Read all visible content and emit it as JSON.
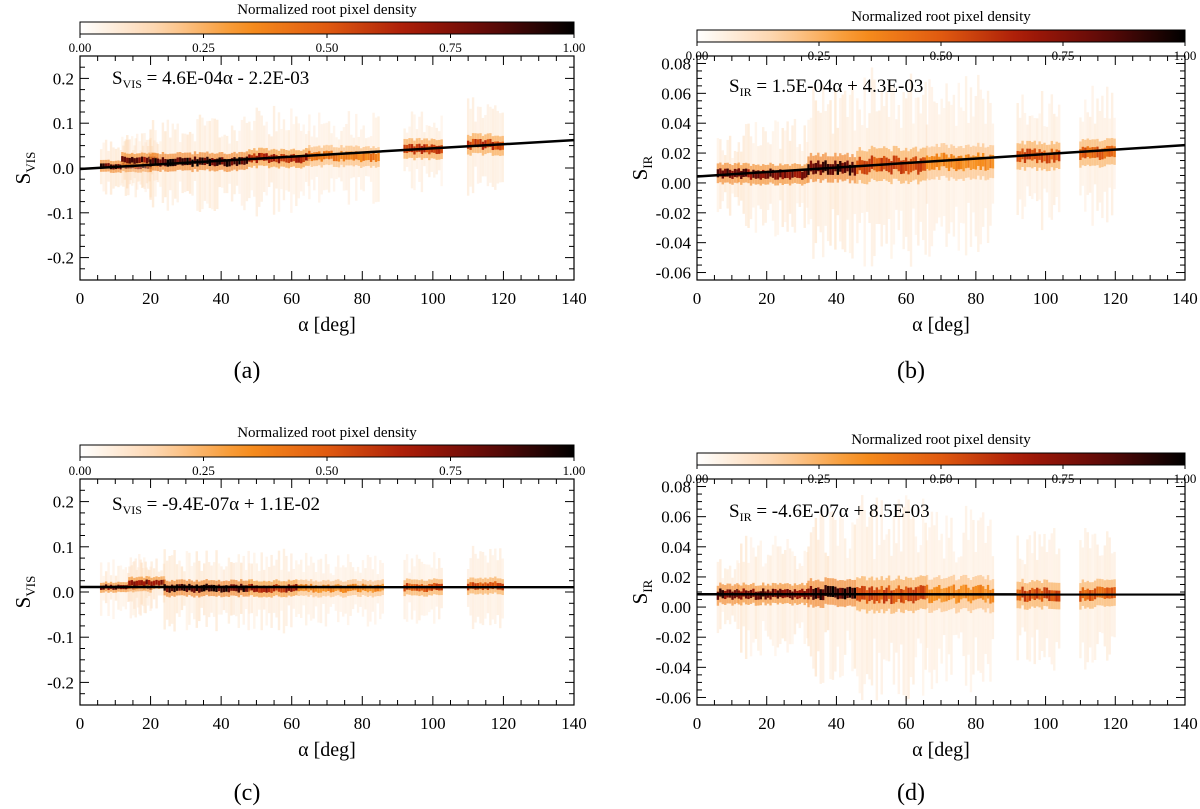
{
  "colorbar": {
    "title": "Normalized root pixel density",
    "ticks": [
      "0.00",
      "0.25",
      "0.50",
      "0.75",
      "1.00"
    ],
    "stops": [
      "#ffffff",
      "#fdd2a8",
      "#f7901e",
      "#e05a10",
      "#a81a08",
      "#5e0a08",
      "#000000"
    ]
  },
  "chart_data": [
    {
      "type": "heatmap",
      "panel": "a",
      "caption": "(a)",
      "equation": {
        "symbol": "S",
        "sub": "VIS",
        "rest": " = 4.6E-04α - 2.2E-03"
      },
      "xlabel": "α [deg]",
      "ylabel": {
        "symbol": "S",
        "sub": "VIS"
      },
      "xlim": [
        0,
        140
      ],
      "ylim": [
        -0.25,
        0.25
      ],
      "xticks": [
        0,
        20,
        40,
        60,
        80,
        100,
        120,
        140
      ],
      "yticks": [
        -0.2,
        -0.1,
        0.0,
        0.1,
        0.2
      ],
      "ytick_labels": [
        "-0.2",
        "-0.1",
        "0.0",
        "0.1",
        "0.2"
      ],
      "fit": {
        "slope": 0.00046,
        "intercept": -0.0022
      },
      "clusters": [
        {
          "x": [
            6,
            20
          ],
          "y": 0.004,
          "spread": 0.006,
          "intensity": 0.95,
          "halo": 0.05
        },
        {
          "x": [
            12,
            22
          ],
          "y": 0.018,
          "spread": 0.007,
          "intensity": 0.9,
          "halo": 0.05
        },
        {
          "x": [
            20,
            48
          ],
          "y": 0.014,
          "spread": 0.009,
          "intensity": 1.0,
          "halo": 0.08
        },
        {
          "x": [
            48,
            65
          ],
          "y": 0.022,
          "spread": 0.009,
          "intensity": 0.75,
          "halo": 0.09
        },
        {
          "x": [
            65,
            85
          ],
          "y": 0.026,
          "spread": 0.01,
          "intensity": 0.45,
          "halo": 0.08
        },
        {
          "x": [
            92,
            103
          ],
          "y": 0.042,
          "spread": 0.01,
          "intensity": 0.65,
          "halo": 0.07
        },
        {
          "x": [
            110,
            120
          ],
          "y": 0.052,
          "spread": 0.01,
          "intensity": 0.65,
          "halo": 0.08
        }
      ]
    },
    {
      "type": "heatmap",
      "panel": "b",
      "caption": "(b)",
      "equation": {
        "symbol": "S",
        "sub": "IR",
        "rest": " = 1.5E-04α + 4.3E-03"
      },
      "xlabel": "α [deg]",
      "ylabel": {
        "symbol": "S",
        "sub": "IR"
      },
      "xlim": [
        0,
        140
      ],
      "ylim": [
        -0.065,
        0.085
      ],
      "xticks": [
        0,
        20,
        40,
        60,
        80,
        100,
        120,
        140
      ],
      "yticks": [
        -0.06,
        -0.04,
        -0.02,
        0.0,
        0.02,
        0.04,
        0.06,
        0.08
      ],
      "ytick_labels": [
        "-0.06",
        "-0.04",
        "-0.02",
        "0.00",
        "0.02",
        "0.04",
        "0.06",
        "0.08"
      ],
      "fit": {
        "slope": 0.00015,
        "intercept": 0.0043
      },
      "clusters": [
        {
          "x": [
            6,
            12
          ],
          "y": 0.006,
          "spread": 0.003,
          "intensity": 0.95,
          "halo": 0.02
        },
        {
          "x": [
            12,
            32
          ],
          "y": 0.006,
          "spread": 0.003,
          "intensity": 0.9,
          "halo": 0.03
        },
        {
          "x": [
            32,
            46
          ],
          "y": 0.01,
          "spread": 0.004,
          "intensity": 1.0,
          "halo": 0.045
        },
        {
          "x": [
            46,
            66
          ],
          "y": 0.012,
          "spread": 0.005,
          "intensity": 0.6,
          "halo": 0.05
        },
        {
          "x": [
            66,
            85
          ],
          "y": 0.014,
          "spread": 0.005,
          "intensity": 0.4,
          "halo": 0.045
        },
        {
          "x": [
            92,
            104
          ],
          "y": 0.018,
          "spread": 0.004,
          "intensity": 0.6,
          "halo": 0.035
        },
        {
          "x": [
            110,
            120
          ],
          "y": 0.02,
          "spread": 0.004,
          "intensity": 0.55,
          "halo": 0.035
        }
      ]
    },
    {
      "type": "heatmap",
      "panel": "c",
      "caption": "(c)",
      "equation": {
        "symbol": "S",
        "sub": "VIS",
        "rest": " = -9.4E-07α + 1.1E-02"
      },
      "xlabel": "α [deg]",
      "ylabel": {
        "symbol": "S",
        "sub": "VIS"
      },
      "xlim": [
        0,
        140
      ],
      "ylim": [
        -0.25,
        0.25
      ],
      "xticks": [
        0,
        20,
        40,
        60,
        80,
        100,
        120,
        140
      ],
      "yticks": [
        -0.2,
        -0.1,
        0.0,
        0.1,
        0.2
      ],
      "ytick_labels": [
        "-0.2",
        "-0.1",
        "0.0",
        "0.1",
        "0.2"
      ],
      "fit": {
        "slope": -9.4e-07,
        "intercept": 0.011
      },
      "clusters": [
        {
          "x": [
            6,
            20
          ],
          "y": 0.011,
          "spread": 0.005,
          "intensity": 0.9,
          "halo": 0.05
        },
        {
          "x": [
            14,
            24
          ],
          "y": 0.02,
          "spread": 0.006,
          "intensity": 0.85,
          "halo": 0.05
        },
        {
          "x": [
            24,
            48
          ],
          "y": 0.008,
          "spread": 0.008,
          "intensity": 1.0,
          "halo": 0.07
        },
        {
          "x": [
            48,
            62
          ],
          "y": 0.008,
          "spread": 0.008,
          "intensity": 0.75,
          "halo": 0.07
        },
        {
          "x": [
            62,
            86
          ],
          "y": 0.008,
          "spread": 0.008,
          "intensity": 0.4,
          "halo": 0.06
        },
        {
          "x": [
            92,
            103
          ],
          "y": 0.01,
          "spread": 0.008,
          "intensity": 0.6,
          "halo": 0.06
        },
        {
          "x": [
            110,
            120
          ],
          "y": 0.014,
          "spread": 0.008,
          "intensity": 0.6,
          "halo": 0.07
        }
      ]
    },
    {
      "type": "heatmap",
      "panel": "d",
      "caption": "(d)",
      "equation": {
        "symbol": "S",
        "sub": "IR",
        "rest": " = -4.6E-07α + 8.5E-03"
      },
      "xlabel": "α [deg]",
      "ylabel": {
        "symbol": "S",
        "sub": "IR"
      },
      "xlim": [
        0,
        140
      ],
      "ylim": [
        -0.065,
        0.085
      ],
      "xticks": [
        0,
        20,
        40,
        60,
        80,
        100,
        120,
        140
      ],
      "yticks": [
        -0.06,
        -0.04,
        -0.02,
        0.0,
        0.02,
        0.04,
        0.06,
        0.08
      ],
      "ytick_labels": [
        "-0.06",
        "-0.04",
        "-0.02",
        "0.00",
        "0.02",
        "0.04",
        "0.06",
        "0.08"
      ],
      "fit": {
        "slope": -4.6e-07,
        "intercept": 0.0085
      },
      "clusters": [
        {
          "x": [
            6,
            12
          ],
          "y": 0.0085,
          "spread": 0.003,
          "intensity": 0.95,
          "halo": 0.02
        },
        {
          "x": [
            12,
            32
          ],
          "y": 0.0085,
          "spread": 0.003,
          "intensity": 0.9,
          "halo": 0.03
        },
        {
          "x": [
            32,
            46
          ],
          "y": 0.0095,
          "spread": 0.004,
          "intensity": 1.0,
          "halo": 0.045
        },
        {
          "x": [
            46,
            66
          ],
          "y": 0.0085,
          "spread": 0.005,
          "intensity": 0.6,
          "halo": 0.05
        },
        {
          "x": [
            66,
            85
          ],
          "y": 0.0085,
          "spread": 0.005,
          "intensity": 0.4,
          "halo": 0.045
        },
        {
          "x": [
            92,
            104
          ],
          "y": 0.0085,
          "spread": 0.004,
          "intensity": 0.6,
          "halo": 0.035
        },
        {
          "x": [
            110,
            120
          ],
          "y": 0.0085,
          "spread": 0.004,
          "intensity": 0.55,
          "halo": 0.035
        }
      ]
    }
  ]
}
